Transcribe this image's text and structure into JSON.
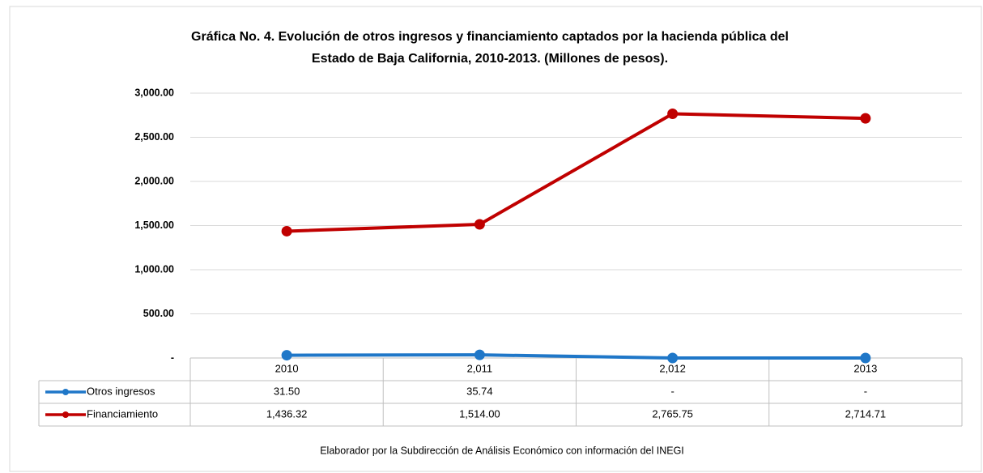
{
  "chart_data": {
    "type": "line",
    "title": [
      "Gráfica No. 4. Evolución de otros ingresos y  financiamiento captados por la hacienda pública del",
      "Estado de Baja California, 2010-2013. (Millones de pesos)."
    ],
    "categories": [
      "2010",
      "2,011",
      "2,012",
      "2013"
    ],
    "series": [
      {
        "name": "Otros ingresos",
        "color": "#1f77c8",
        "values": [
          31.5,
          35.74,
          0,
          0
        ],
        "value_labels": [
          "31.50",
          "35.74",
          "-",
          "-"
        ]
      },
      {
        "name": "Financiamiento",
        "color": "#c00000",
        "values": [
          1436.32,
          1514,
          2765.75,
          2714.71
        ],
        "value_labels": [
          "1,436.32",
          "1,514.00",
          "2,765.75",
          "2,714.71"
        ]
      }
    ],
    "ylim": [
      0,
      3000
    ],
    "yticks": [
      {
        "value": 0,
        "label": "-"
      },
      {
        "value": 500,
        "label": "500.00"
      },
      {
        "value": 1000,
        "label": "1,000.00"
      },
      {
        "value": 1500,
        "label": "1,500.00"
      },
      {
        "value": 2000,
        "label": "2,000.00"
      },
      {
        "value": 2500,
        "label": "2,500.00"
      },
      {
        "value": 3000,
        "label": "3,000.00"
      }
    ],
    "grid": true,
    "source": "Elaborador por la Subdirección de Análisis Económico con información del INEGI"
  }
}
